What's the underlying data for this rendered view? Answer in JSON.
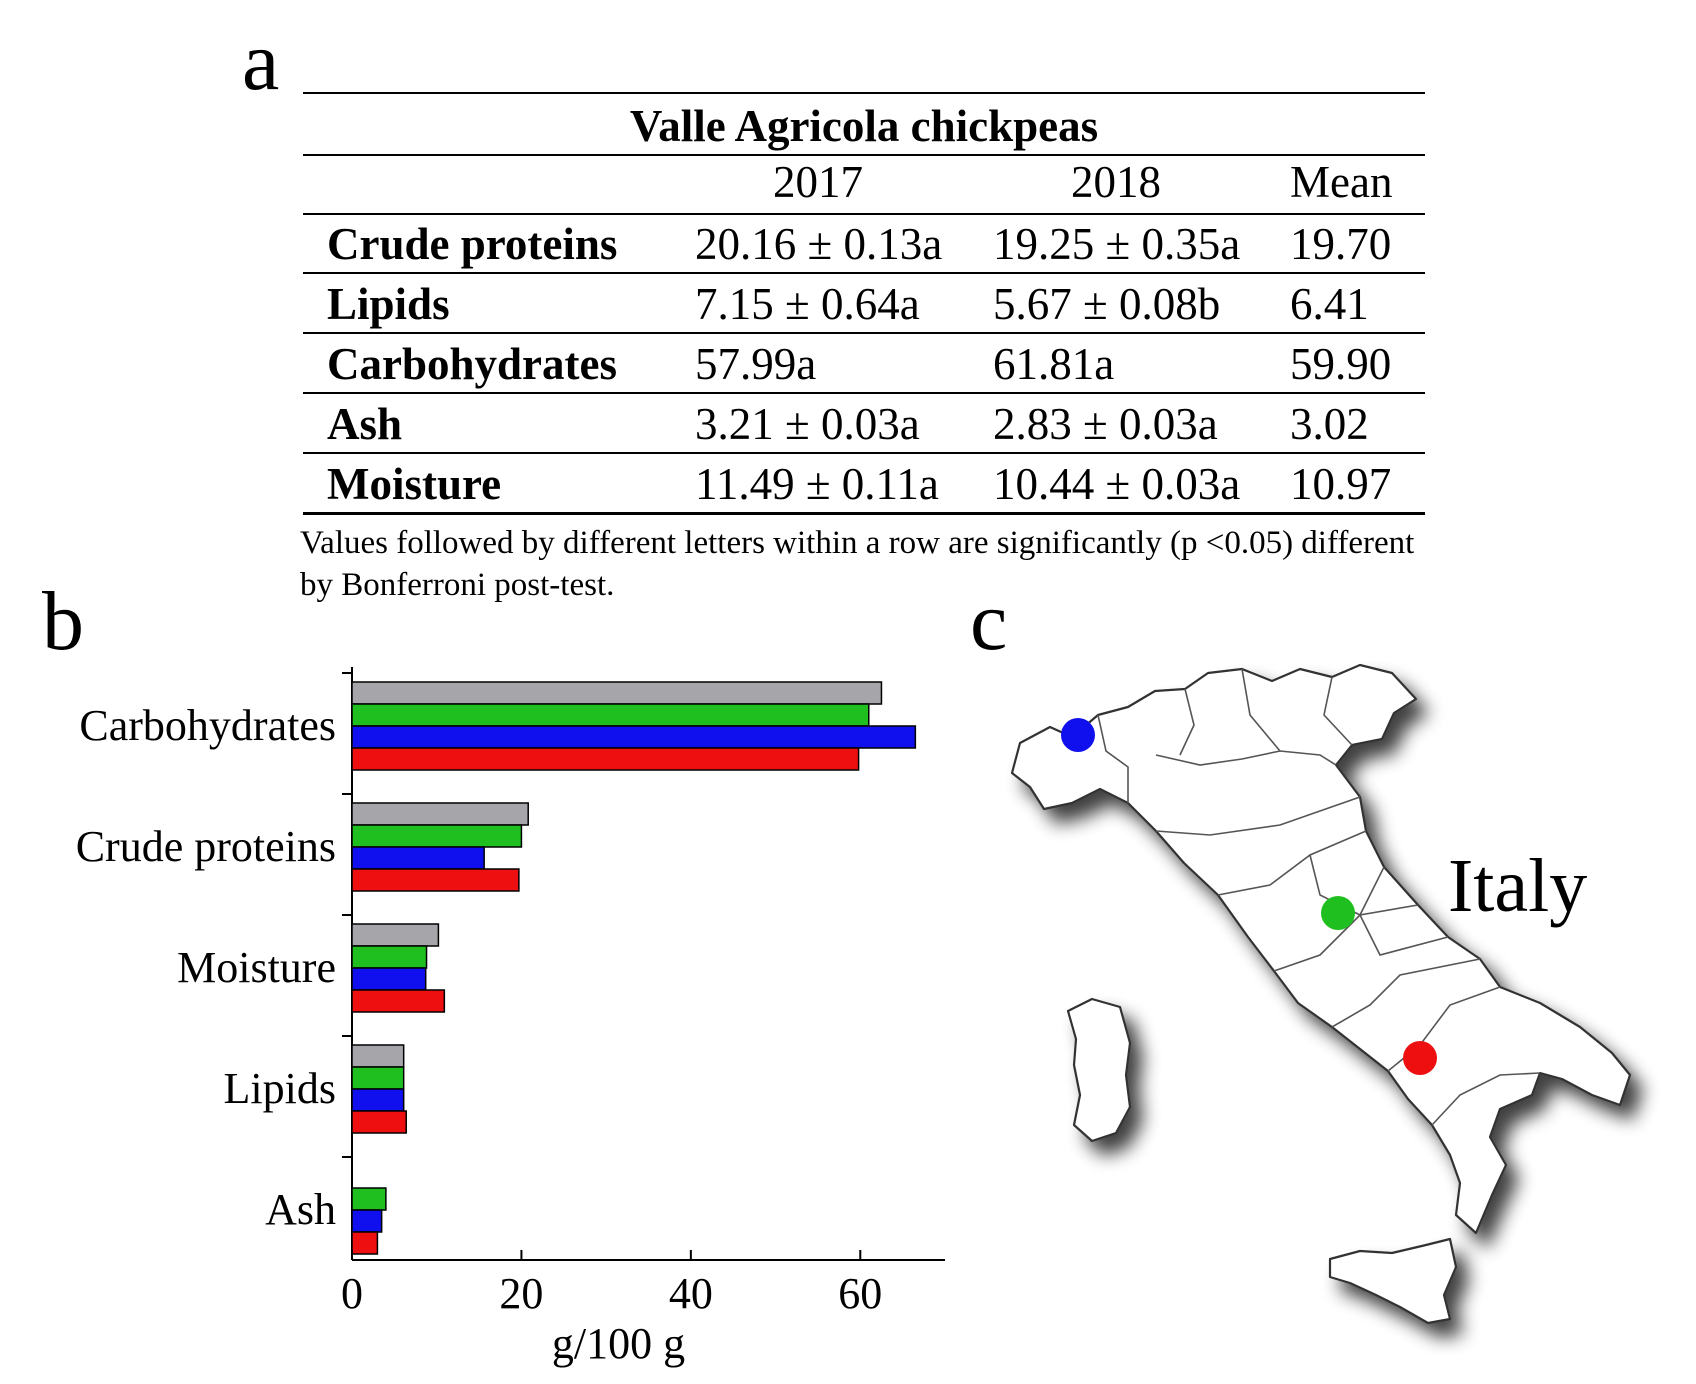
{
  "panels": {
    "a": "a",
    "b": "b",
    "c": "c"
  },
  "table": {
    "title": "Valle Agricola chickpeas",
    "columns": [
      "2017",
      "2018",
      "Mean"
    ],
    "rows": [
      {
        "label": "Crude proteins",
        "y2017": "20.16 ± 0.13a",
        "y2018": "19.25 ± 0.35a",
        "mean": "19.70"
      },
      {
        "label": "Lipids",
        "y2017": "7.15 ± 0.64a",
        "y2018": "5.67 ± 0.08b",
        "mean": "6.41"
      },
      {
        "label": "Carbohydrates",
        "y2017": "57.99a",
        "y2018": "61.81a",
        "mean": "59.90"
      },
      {
        "label": "Ash",
        "y2017": "3.21 ± 0.03a",
        "y2018": "2.83 ± 0.03a",
        "mean": "3.02"
      },
      {
        "label": "Moisture",
        "y2017": "11.49 ± 0.11a",
        "y2018": "10.44 ± 0.03a",
        "mean": "10.97"
      }
    ],
    "note": "Values followed by different letters within a row are significantly (p <0.05) different by Bonferroni post-test."
  },
  "chart_data": {
    "type": "bar",
    "orientation": "horizontal",
    "categories": [
      "Carbohydrates",
      "Crude proteins",
      "Moisture",
      "Lipids",
      "Ash"
    ],
    "series": [
      {
        "color": "#a6a6aa",
        "values": [
          62.5,
          20.8,
          10.2,
          6.1,
          0
        ]
      },
      {
        "color": "#1fbf1f",
        "values": [
          61.0,
          20.0,
          8.8,
          6.1,
          4.0
        ]
      },
      {
        "color": "#1010ee",
        "values": [
          66.5,
          15.6,
          8.7,
          6.1,
          3.5
        ]
      },
      {
        "color": "#ee1010",
        "values": [
          59.8,
          19.7,
          10.9,
          6.4,
          3.0
        ]
      }
    ],
    "xlabel": "g/100 g",
    "xlim": [
      0,
      70
    ],
    "xticks": [
      0,
      20,
      40,
      60
    ],
    "grid": false
  },
  "map": {
    "label": "Italy",
    "markers": [
      {
        "color": "#1010ee",
        "region": "northwest"
      },
      {
        "color": "#1fbf1f",
        "region": "center-east"
      },
      {
        "color": "#ee1010",
        "region": "south-west"
      }
    ]
  }
}
